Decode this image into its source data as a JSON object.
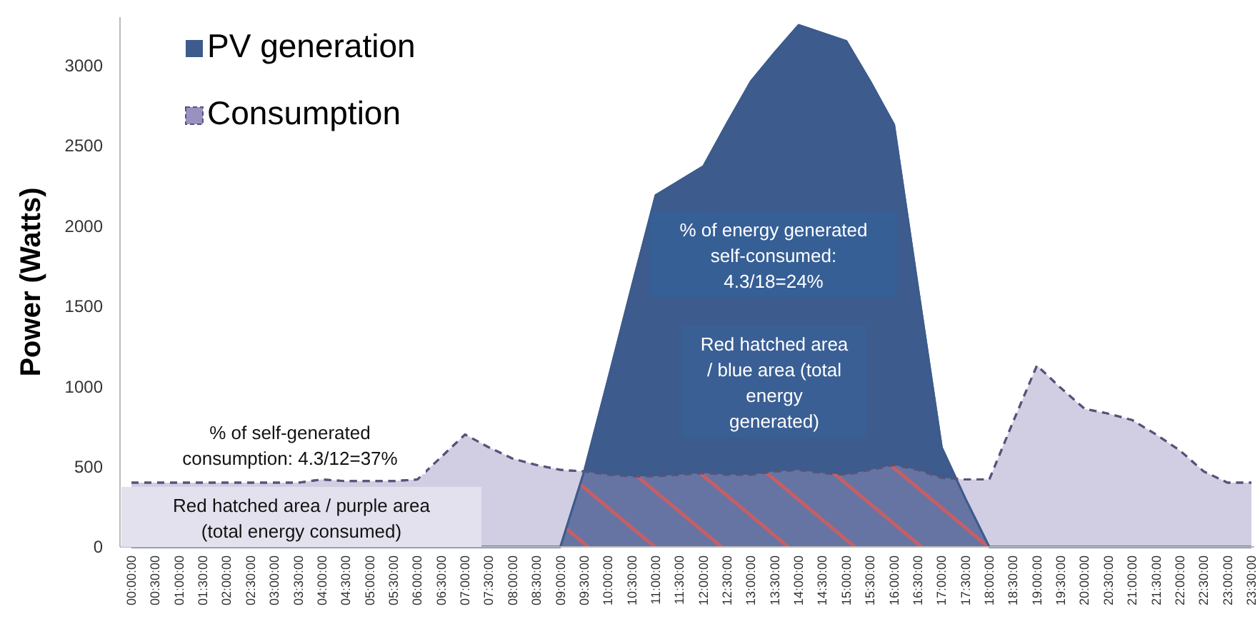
{
  "chart_data": {
    "type": "area",
    "ylabel": "Power (Watts)",
    "categories": [
      "00:00:00",
      "00:30:00",
      "01:00:00",
      "01:30:00",
      "02:00:00",
      "02:30:00",
      "03:00:00",
      "03:30:00",
      "04:00:00",
      "04:30:00",
      "05:00:00",
      "05:30:00",
      "06:00:00",
      "06:30:00",
      "07:00:00",
      "07:30:00",
      "08:00:00",
      "08:30:00",
      "09:00:00",
      "09:30:00",
      "10:00:00",
      "10:30:00",
      "11:00:00",
      "11:30:00",
      "12:00:00",
      "12:30:00",
      "13:00:00",
      "13:30:00",
      "14:00:00",
      "14:30:00",
      "15:00:00",
      "15:30:00",
      "16:00:00",
      "16:30:00",
      "17:00:00",
      "17:30:00",
      "18:00:00",
      "18:30:00",
      "19:00:00",
      "19:30:00",
      "20:00:00",
      "20:30:00",
      "21:00:00",
      "21:30:00",
      "22:00:00",
      "22:30:00",
      "23:00:00",
      "23:30:00"
    ],
    "series": [
      {
        "name": "PV generation",
        "color": "#3d5b8c",
        "values": [
          0,
          0,
          0,
          0,
          0,
          0,
          0,
          0,
          0,
          0,
          0,
          0,
          0,
          0,
          0,
          0,
          0,
          0,
          0,
          470,
          1040,
          1620,
          2190,
          2280,
          2370,
          2640,
          2900,
          3080,
          3250,
          3200,
          3150,
          2900,
          2630,
          1620,
          620,
          300,
          0,
          0,
          0,
          0,
          0,
          0,
          0,
          0,
          0,
          0,
          0,
          0
        ]
      },
      {
        "color": "#e8351c",
        "values": [
          null,
          null,
          null,
          null,
          null,
          null,
          null,
          null,
          null,
          null,
          null,
          null,
          null,
          null,
          null,
          null,
          null,
          null,
          0,
          470,
          450,
          440,
          440,
          450,
          460,
          450,
          450,
          470,
          480,
          460,
          450,
          480,
          510,
          480,
          430,
          300,
          0,
          null,
          null,
          null,
          null,
          null,
          null,
          null,
          null,
          null,
          null,
          null
        ]
      },
      {
        "name": "Consumption",
        "color": "#9992c1",
        "line_style": "dashed",
        "values": [
          400,
          400,
          400,
          400,
          400,
          400,
          400,
          400,
          420,
          410,
          410,
          410,
          420,
          560,
          700,
          620,
          550,
          510,
          480,
          470,
          450,
          440,
          440,
          450,
          460,
          450,
          450,
          470,
          480,
          460,
          450,
          480,
          510,
          480,
          430,
          420,
          420,
          780,
          1130,
          990,
          860,
          830,
          790,
          700,
          600,
          470,
          400,
          400
        ]
      }
    ],
    "ylim": [
      0,
      3300
    ],
    "yticks": [
      0,
      500,
      1000,
      1500,
      2000,
      2500,
      3000
    ],
    "grid": false,
    "legend": "top left",
    "annotations": [
      "% of self-generated\nconsumption:  4.3/12=37%",
      "Red hatched  area / purple  area\n(total energy consumed)",
      "% of energy generated\nself-consumed:\n4.3/18=24%",
      "Red hatched  area\n/ blue  area (total\nenergy\ngenerated)"
    ]
  }
}
